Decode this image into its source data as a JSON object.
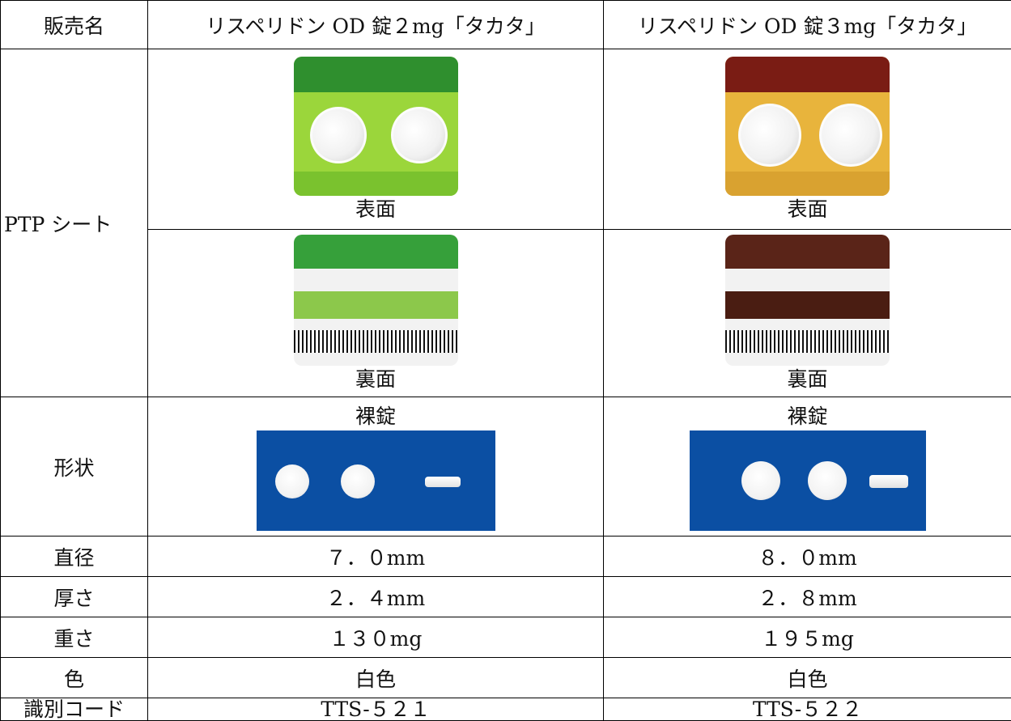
{
  "table": {
    "header": [
      "販売名",
      "リスペリドン OD 錠２mg「タカタ」",
      "リスペリドン OD 錠３mg「タカタ」"
    ],
    "ptp": {
      "label": "PTP シート",
      "front": [
        "表面",
        "表面"
      ],
      "back": [
        "裏面",
        "裏面"
      ]
    },
    "shape": {
      "label": "形状",
      "caption": [
        "裸錠",
        "裸錠"
      ]
    },
    "rows": [
      [
        "直径",
        "７．０mm",
        "８．０mm"
      ],
      [
        "厚さ",
        "２．４mm",
        "２．８mm"
      ],
      [
        "重さ",
        "１３０mg",
        "１９５mg"
      ],
      [
        "色",
        "白色",
        "白色"
      ],
      [
        "識別コード",
        "TTS-５２１",
        "TTS-５２２"
      ]
    ]
  }
}
